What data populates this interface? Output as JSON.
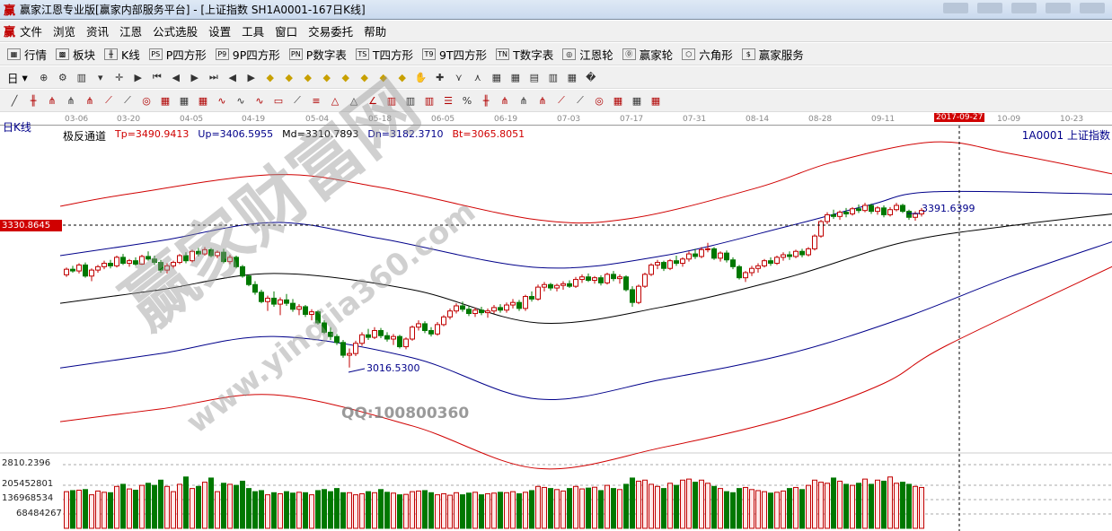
{
  "window": {
    "title": "赢家江恩专业版[赢家内部服务平台] - [上证指数  SH1A0001-167日K线]",
    "logo": "赢"
  },
  "menu": [
    "文件",
    "浏览",
    "资讯",
    "江恩",
    "公式选股",
    "设置",
    "工具",
    "窗口",
    "交易委托",
    "帮助"
  ],
  "toolbar1": [
    {
      "icon": "quote-table-icon",
      "glyph": "▦",
      "label": "行情"
    },
    {
      "icon": "sector-block-icon",
      "glyph": "▩",
      "label": "板块"
    },
    {
      "icon": "kline-icon",
      "glyph": "╫",
      "label": "K线"
    },
    {
      "icon": "ps-icon",
      "glyph": "PS",
      "label": "P四方形"
    },
    {
      "icon": "p9-icon",
      "glyph": "P9",
      "label": "9P四方形"
    },
    {
      "icon": "pn-icon",
      "glyph": "PN",
      "label": "P数字表"
    },
    {
      "icon": "ts-icon",
      "glyph": "TS",
      "label": "T四方形"
    },
    {
      "icon": "t9-icon",
      "glyph": "T9",
      "label": "9T四方形"
    },
    {
      "icon": "tn-icon",
      "glyph": "TN",
      "label": "T数字表"
    },
    {
      "icon": "gann-wheel-icon",
      "glyph": "◎",
      "label": "江恩轮"
    },
    {
      "icon": "winner-wheel-icon",
      "glyph": "⓪",
      "label": "赢家轮"
    },
    {
      "icon": "hexagon-icon",
      "glyph": "⬡",
      "label": "六角形"
    },
    {
      "icon": "dollar-icon",
      "glyph": "$",
      "label": "赢家服务"
    }
  ],
  "toolbar2": {
    "period": "日",
    "icons": [
      "period-dropdown-icon",
      "zoom-icon",
      "settings-icon",
      "kline-type-icon",
      "dropdown-icon",
      "crosshair-icon",
      "play-icon",
      "first-icon",
      "prev-page-icon",
      "next-page-icon",
      "last-icon",
      "arrow-left-icon",
      "arrow-right-icon",
      "diamond-up-icon",
      "diamond-down-icon",
      "diamond-left-icon",
      "diamond-right-icon",
      "diamond-a-icon",
      "diamond-b-icon",
      "diamond-c-icon",
      "diamond-d-icon",
      "hand-icon",
      "cross-icon",
      "line-tool-icon",
      "draw-tool-icon",
      "color-tool-icon",
      "calendar-icon",
      "calculator-icon",
      "book-icon",
      "print-icon",
      "car-icon"
    ]
  },
  "toolbar3": {
    "icons": [
      "pencil-icon",
      "parallel-lines-icon",
      "fork-icon",
      "fork2-icon",
      "fork3-icon",
      "fan-icon",
      "fan2-icon",
      "circle-icon",
      "grid-icon",
      "grid2-icon",
      "grid3-icon",
      "wave-icon",
      "wave2-icon",
      "wave3-icon",
      "box-icon",
      "fan-lines-icon",
      "fib-icon",
      "triangle-icon",
      "triangle2-icon",
      "angle-icon",
      "bars-icon",
      "bars2-icon",
      "bars3-icon",
      "levels-icon",
      "percent-icon",
      "arc-icon",
      "arc2-icon",
      "arc3-icon",
      "arc4-icon",
      "arc5-icon",
      "gann-icon",
      "gann2-icon",
      "gann3-icon",
      "gann4-icon",
      "gann5-icon"
    ],
    "percent": "%"
  },
  "chart": {
    "period_label": "日K线",
    "indicator": {
      "name": "极反通道",
      "tp": "Tp=3490.9413",
      "up": "Up=3406.5955",
      "md": "Md=3310.7893",
      "dn": "Dn=3182.3710",
      "bt": "Bt=3065.8051"
    },
    "stock": "1A0001  上证指数",
    "cursor_price": "3330.8645",
    "cursor_date": "2017-09-27",
    "dates": [
      "03-06",
      "03-20",
      "04-05",
      "04-19",
      "05-04",
      "05-18",
      "06-05",
      "06-19",
      "07-03",
      "07-17",
      "07-31",
      "08-14",
      "08-28",
      "09-11",
      "10-09",
      "10-23"
    ],
    "high_label": "3391.6399",
    "low_label": "3016.5300",
    "volume_axis": [
      "2810.2396",
      "205452801",
      "136968534",
      "68484267"
    ],
    "colors": {
      "up": "#c00000",
      "down": "#007800",
      "tp": "#d00000",
      "up_band": "#00008a",
      "md": "#000000",
      "dn": "#00008a",
      "bt": "#d00000"
    },
    "candles_ohlc": [
      [
        3235,
        3252,
        3230,
        3248
      ],
      [
        3248,
        3256,
        3240,
        3244
      ],
      [
        3244,
        3262,
        3238,
        3258
      ],
      [
        3258,
        3264,
        3228,
        3232
      ],
      [
        3232,
        3250,
        3220,
        3246
      ],
      [
        3246,
        3258,
        3240,
        3254
      ],
      [
        3254,
        3268,
        3248,
        3262
      ],
      [
        3262,
        3270,
        3250,
        3256
      ],
      [
        3256,
        3280,
        3252,
        3276
      ],
      [
        3276,
        3284,
        3258,
        3262
      ],
      [
        3262,
        3272,
        3254,
        3268
      ],
      [
        3268,
        3276,
        3256,
        3260
      ],
      [
        3260,
        3282,
        3258,
        3278
      ],
      [
        3278,
        3290,
        3268,
        3272
      ],
      [
        3272,
        3280,
        3258,
        3264
      ],
      [
        3264,
        3270,
        3240,
        3246
      ],
      [
        3246,
        3262,
        3238,
        3256
      ],
      [
        3256,
        3268,
        3250,
        3264
      ],
      [
        3264,
        3284,
        3260,
        3280
      ],
      [
        3280,
        3288,
        3262,
        3268
      ],
      [
        3268,
        3294,
        3264,
        3290
      ],
      [
        3290,
        3298,
        3278,
        3284
      ],
      [
        3284,
        3300,
        3280,
        3294
      ],
      [
        3294,
        3298,
        3276,
        3280
      ],
      [
        3280,
        3292,
        3274,
        3288
      ],
      [
        3288,
        3296,
        3262,
        3266
      ],
      [
        3266,
        3282,
        3260,
        3276
      ],
      [
        3276,
        3280,
        3250,
        3254
      ],
      [
        3254,
        3258,
        3228,
        3232
      ],
      [
        3232,
        3236,
        3208,
        3212
      ],
      [
        3212,
        3220,
        3188,
        3194
      ],
      [
        3194,
        3200,
        3168,
        3172
      ],
      [
        3172,
        3186,
        3150,
        3180
      ],
      [
        3180,
        3196,
        3160,
        3166
      ],
      [
        3166,
        3182,
        3140,
        3176
      ],
      [
        3176,
        3190,
        3162,
        3168
      ],
      [
        3168,
        3178,
        3148,
        3154
      ],
      [
        3154,
        3166,
        3140,
        3160
      ],
      [
        3160,
        3164,
        3136,
        3142
      ],
      [
        3142,
        3154,
        3128,
        3148
      ],
      [
        3148,
        3152,
        3118,
        3122
      ],
      [
        3122,
        3128,
        3096,
        3100
      ],
      [
        3100,
        3112,
        3082,
        3090
      ],
      [
        3090,
        3096,
        3070,
        3076
      ],
      [
        3076,
        3082,
        3040,
        3046
      ],
      [
        3046,
        3062,
        3017,
        3050
      ],
      [
        3050,
        3080,
        3044,
        3074
      ],
      [
        3074,
        3100,
        3068,
        3094
      ],
      [
        3094,
        3108,
        3082,
        3088
      ],
      [
        3088,
        3112,
        3084,
        3104
      ],
      [
        3104,
        3110,
        3086,
        3092
      ],
      [
        3092,
        3100,
        3078,
        3084
      ],
      [
        3084,
        3096,
        3070,
        3090
      ],
      [
        3090,
        3094,
        3062,
        3066
      ],
      [
        3066,
        3088,
        3060,
        3084
      ],
      [
        3084,
        3116,
        3080,
        3112
      ],
      [
        3112,
        3128,
        3104,
        3120
      ],
      [
        3120,
        3126,
        3098,
        3104
      ],
      [
        3104,
        3112,
        3090,
        3096
      ],
      [
        3096,
        3124,
        3092,
        3118
      ],
      [
        3118,
        3140,
        3114,
        3136
      ],
      [
        3136,
        3156,
        3130,
        3150
      ],
      [
        3150,
        3168,
        3144,
        3162
      ],
      [
        3162,
        3172,
        3148,
        3154
      ],
      [
        3154,
        3162,
        3138,
        3144
      ],
      [
        3144,
        3158,
        3136,
        3152
      ],
      [
        3152,
        3160,
        3140,
        3146
      ],
      [
        3146,
        3156,
        3134,
        3150
      ],
      [
        3150,
        3164,
        3144,
        3158
      ],
      [
        3158,
        3166,
        3146,
        3152
      ],
      [
        3152,
        3170,
        3146,
        3164
      ],
      [
        3164,
        3178,
        3156,
        3170
      ],
      [
        3170,
        3176,
        3150,
        3156
      ],
      [
        3156,
        3188,
        3150,
        3184
      ],
      [
        3184,
        3196,
        3172,
        3178
      ],
      [
        3178,
        3212,
        3174,
        3206
      ],
      [
        3206,
        3218,
        3196,
        3212
      ],
      [
        3212,
        3216,
        3198,
        3204
      ],
      [
        3204,
        3214,
        3196,
        3210
      ],
      [
        3210,
        3220,
        3200,
        3214
      ],
      [
        3214,
        3222,
        3204,
        3208
      ],
      [
        3208,
        3230,
        3204,
        3224
      ],
      [
        3224,
        3236,
        3216,
        3230
      ],
      [
        3230,
        3238,
        3218,
        3222
      ],
      [
        3222,
        3232,
        3214,
        3228
      ],
      [
        3228,
        3234,
        3210,
        3216
      ],
      [
        3216,
        3240,
        3212,
        3236
      ],
      [
        3236,
        3244,
        3220,
        3226
      ],
      [
        3226,
        3236,
        3214,
        3230
      ],
      [
        3230,
        3234,
        3196,
        3200
      ],
      [
        3200,
        3208,
        3160,
        3170
      ],
      [
        3170,
        3212,
        3166,
        3208
      ],
      [
        3208,
        3240,
        3204,
        3236
      ],
      [
        3236,
        3262,
        3232,
        3258
      ],
      [
        3258,
        3270,
        3248,
        3264
      ],
      [
        3264,
        3268,
        3244,
        3250
      ],
      [
        3250,
        3272,
        3246,
        3268
      ],
      [
        3268,
        3280,
        3256,
        3262
      ],
      [
        3262,
        3276,
        3254,
        3272
      ],
      [
        3272,
        3290,
        3266,
        3284
      ],
      [
        3284,
        3296,
        3272,
        3278
      ],
      [
        3278,
        3300,
        3274,
        3294
      ],
      [
        3294,
        3310,
        3288,
        3296
      ],
      [
        3296,
        3300,
        3270,
        3274
      ],
      [
        3274,
        3290,
        3266,
        3286
      ],
      [
        3286,
        3292,
        3264,
        3270
      ],
      [
        3270,
        3276,
        3248,
        3254
      ],
      [
        3254,
        3258,
        3224,
        3228
      ],
      [
        3228,
        3244,
        3218,
        3240
      ],
      [
        3240,
        3256,
        3232,
        3250
      ],
      [
        3250,
        3262,
        3240,
        3256
      ],
      [
        3256,
        3272,
        3252,
        3268
      ],
      [
        3268,
        3276,
        3256,
        3262
      ],
      [
        3262,
        3280,
        3258,
        3276
      ],
      [
        3276,
        3288,
        3268,
        3282
      ],
      [
        3282,
        3290,
        3270,
        3278
      ],
      [
        3278,
        3294,
        3274,
        3290
      ],
      [
        3290,
        3296,
        3276,
        3282
      ],
      [
        3282,
        3300,
        3278,
        3296
      ],
      [
        3296,
        3330,
        3292,
        3326
      ],
      [
        3326,
        3364,
        3322,
        3360
      ],
      [
        3360,
        3382,
        3354,
        3376
      ],
      [
        3376,
        3388,
        3366,
        3372
      ],
      [
        3372,
        3386,
        3364,
        3382
      ],
      [
        3382,
        3392,
        3370,
        3378
      ],
      [
        3378,
        3394,
        3374,
        3390
      ],
      [
        3390,
        3400,
        3380,
        3386
      ],
      [
        3386,
        3404,
        3382,
        3398
      ],
      [
        3398,
        3402,
        3378,
        3384
      ],
      [
        3384,
        3396,
        3376,
        3392
      ],
      [
        3392,
        3398,
        3370,
        3376
      ],
      [
        3376,
        3394,
        3372,
        3388
      ],
      [
        3388,
        3404,
        3384,
        3398
      ],
      [
        3398,
        3402,
        3380,
        3384
      ],
      [
        3384,
        3388,
        3364,
        3370
      ],
      [
        3370,
        3384,
        3362,
        3378
      ],
      [
        3378,
        3392,
        3372,
        3386
      ]
    ],
    "volume_millions": [
      175,
      180,
      182,
      185,
      160,
      178,
      172,
      170,
      200,
      210,
      188,
      182,
      205,
      215,
      205,
      230,
      200,
      175,
      210,
      245,
      190,
      200,
      220,
      240,
      175,
      215,
      210,
      205,
      225,
      190,
      175,
      180,
      160,
      170,
      165,
      175,
      168,
      172,
      170,
      160,
      180,
      185,
      175,
      190,
      170,
      170,
      160,
      165,
      175,
      170,
      185,
      172,
      168,
      160,
      162,
      175,
      178,
      180,
      170,
      160,
      165,
      158,
      170,
      160,
      168,
      172,
      160,
      165,
      168,
      172,
      170,
      175,
      165,
      172,
      180,
      200,
      195,
      190,
      185,
      178,
      190,
      200,
      188,
      192,
      196,
      180,
      205,
      190,
      185,
      210,
      240,
      225,
      230,
      210,
      200,
      190,
      215,
      205,
      230,
      235,
      220,
      230,
      215,
      200,
      190,
      175,
      170,
      190,
      195,
      185,
      180,
      175,
      168,
      172,
      178,
      190,
      195,
      185,
      205,
      230,
      220,
      215,
      240,
      225,
      210,
      205,
      215,
      235,
      210,
      230,
      225,
      245,
      215,
      220,
      210,
      200,
      195
    ],
    "bands": {
      "tp": [
        [
          -1,
          3396
        ],
        [
          10,
          3425
        ],
        [
          33,
          3470
        ],
        [
          50,
          3440
        ],
        [
          75,
          3364
        ],
        [
          90,
          3368
        ],
        [
          110,
          3440
        ],
        [
          122,
          3500
        ],
        [
          138,
          3547
        ],
        [
          150,
          3520
        ],
        [
          167,
          3470
        ]
      ],
      "up": [
        [
          -1,
          3280
        ],
        [
          15,
          3315
        ],
        [
          33,
          3358
        ],
        [
          50,
          3320
        ],
        [
          75,
          3252
        ],
        [
          95,
          3280
        ],
        [
          115,
          3350
        ],
        [
          128,
          3400
        ],
        [
          138,
          3430
        ],
        [
          167,
          3424
        ]
      ],
      "md": [
        [
          -1,
          3168
        ],
        [
          15,
          3200
        ],
        [
          33,
          3238
        ],
        [
          55,
          3200
        ],
        [
          75,
          3122
        ],
        [
          95,
          3160
        ],
        [
          115,
          3230
        ],
        [
          133,
          3311
        ],
        [
          150,
          3350
        ],
        [
          167,
          3379
        ]
      ],
      "dn": [
        [
          -1,
          3016
        ],
        [
          15,
          3050
        ],
        [
          33,
          3090
        ],
        [
          55,
          3040
        ],
        [
          75,
          2943
        ],
        [
          95,
          2990
        ],
        [
          115,
          3050
        ],
        [
          133,
          3133
        ],
        [
          150,
          3230
        ],
        [
          167,
          3316
        ]
      ],
      "bt": [
        [
          -1,
          2890
        ],
        [
          15,
          2920
        ],
        [
          33,
          2953
        ],
        [
          55,
          2880
        ],
        [
          75,
          2780
        ],
        [
          95,
          2830
        ],
        [
          115,
          2900
        ],
        [
          130,
          2980
        ],
        [
          140,
          3069
        ],
        [
          167,
          3259
        ]
      ]
    }
  },
  "watermark": {
    "site_cn": "赢家财富网",
    "site_url": "www.yingjia360.com",
    "qq": "QQ:100800360"
  }
}
